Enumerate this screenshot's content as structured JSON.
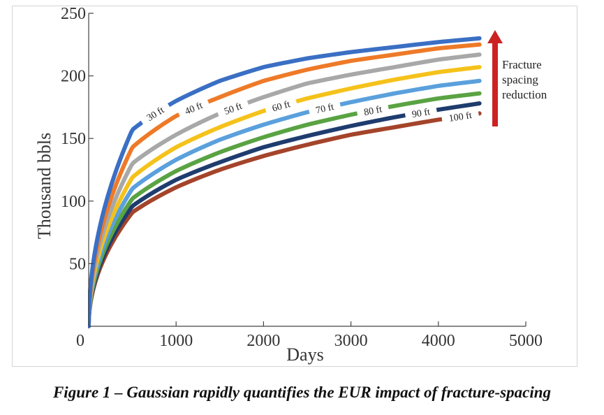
{
  "chart_data": {
    "type": "line",
    "title": "",
    "xlabel": "Days",
    "ylabel": "Thousand bbls",
    "xlim": [
      0,
      5000
    ],
    "ylim": [
      0,
      250
    ],
    "x_ticks": [
      0,
      1000,
      2000,
      3000,
      4000,
      5000
    ],
    "y_ticks": [
      50,
      100,
      150,
      200,
      250
    ],
    "x_tick_labels": [
      "0",
      "1000",
      "2000",
      "3000",
      "4000",
      "5000"
    ],
    "y_tick_labels": [
      "50",
      "100",
      "150",
      "200",
      "250"
    ],
    "x": [
      0,
      500,
      1000,
      1500,
      2000,
      2500,
      3000,
      3500,
      4000,
      4470
    ],
    "series": [
      {
        "name": "30 ft",
        "color": "#3a6fc4",
        "values": [
          0,
          157,
          180,
          196,
          207,
          214,
          219,
          223,
          227,
          230
        ],
        "label_at_day": 760
      },
      {
        "name": "40 ft",
        "color": "#ee7a28",
        "values": [
          0,
          143,
          168,
          183,
          196,
          205,
          212,
          217,
          222,
          225
        ],
        "label_at_day": 1200
      },
      {
        "name": "50 ft",
        "color": "#a8a8a8",
        "values": [
          0,
          130,
          153,
          170,
          183,
          194,
          201,
          207,
          213,
          217
        ],
        "label_at_day": 1650
      },
      {
        "name": "60 ft",
        "color": "#f5c21b",
        "values": [
          0,
          119,
          143,
          159,
          172,
          182,
          190,
          197,
          203,
          207
        ],
        "label_at_day": 2200
      },
      {
        "name": "70 ft",
        "color": "#5aa0dc",
        "values": [
          0,
          110,
          133,
          149,
          161,
          171,
          179,
          186,
          192,
          196
        ],
        "label_at_day": 2700
      },
      {
        "name": "80 ft",
        "color": "#5aa343",
        "values": [
          0,
          102,
          124,
          139,
          151,
          161,
          169,
          176,
          182,
          186
        ],
        "label_at_day": 3250
      },
      {
        "name": "90 ft",
        "color": "#1f3c6e",
        "values": [
          0,
          96,
          117,
          131,
          143,
          152,
          160,
          167,
          173,
          178
        ],
        "label_at_day": 3800
      },
      {
        "name": "100 ft",
        "color": "#a4442a",
        "values": [
          0,
          91,
          111,
          125,
          136,
          145,
          153,
          159,
          165,
          170
        ],
        "label_at_day": 4250
      }
    ],
    "annotation": {
      "lines": [
        "Fracture",
        "spacing",
        "reduction"
      ],
      "arrow_color": "#cc2222",
      "arrow_direction": "up"
    }
  },
  "caption": "Figure 1 – Gaussian rapidly quantifies the EUR impact of fracture-spacing"
}
